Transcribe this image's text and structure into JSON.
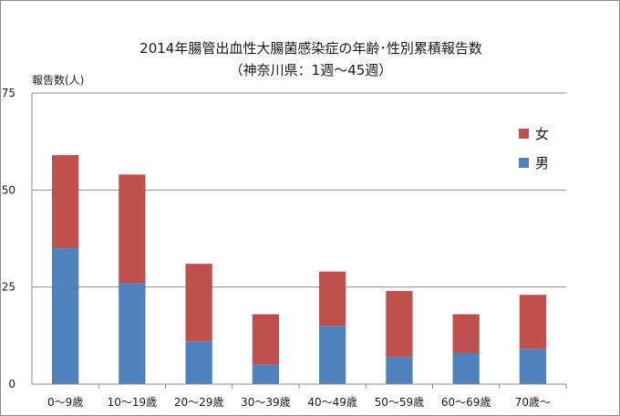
{
  "chart_data": {
    "type": "bar",
    "stacked": true,
    "title": "2014年腸管出血性大腸菌感染症の年齢･性別累積報告数",
    "subtitle": "（神奈川県：1週～45週）",
    "ylabel": "報告数(人)",
    "xlabel": "",
    "ylim": [
      0,
      75
    ],
    "yticks": [
      0,
      25,
      50,
      75
    ],
    "grid": true,
    "legend_position": "right",
    "categories": [
      "0～9歳",
      "10～19歳",
      "20～29歳",
      "30～39歳",
      "40～49歳",
      "50～59歳",
      "60～69歳",
      "70歳～"
    ],
    "series": [
      {
        "name": "男",
        "color": "#4f81bd",
        "values": [
          35,
          26,
          11,
          5,
          15,
          7,
          8,
          9
        ]
      },
      {
        "name": "女",
        "color": "#c0504d",
        "values": [
          24,
          28,
          20,
          13,
          14,
          17,
          10,
          14
        ]
      }
    ],
    "legend_order": [
      "女",
      "男"
    ]
  }
}
